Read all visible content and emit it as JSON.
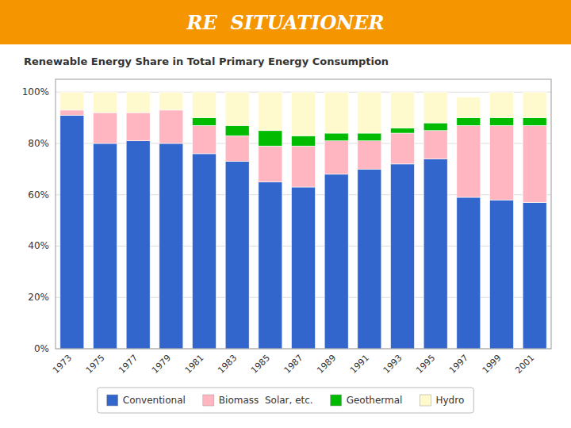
{
  "chart_data": {
    "type": "bar",
    "stacked": true,
    "title": "RE  SITUATIONER",
    "subtitle": "Renewable Energy Share in Total Primary Energy Consumption",
    "categories": [
      "1973",
      "1975",
      "1977",
      "1979",
      "1981",
      "1983",
      "1985",
      "1987",
      "1989",
      "1991",
      "1993",
      "1995",
      "1997",
      "1999",
      "2001"
    ],
    "series": [
      {
        "name": "Conventional",
        "color": "#3366CC",
        "values": [
          91,
          80,
          81,
          80,
          76,
          73,
          65,
          63,
          68,
          70,
          72,
          74,
          59,
          58,
          57
        ]
      },
      {
        "name": "Biomass  Solar, etc.",
        "color": "#FFB6C1",
        "values": [
          2,
          12,
          11,
          13,
          11,
          10,
          14,
          16,
          13,
          11,
          12,
          11,
          28,
          29,
          30
        ]
      },
      {
        "name": "Geothermal",
        "color": "#00BB00",
        "values": [
          0,
          0,
          0,
          0,
          3,
          4,
          6,
          4,
          3,
          3,
          2,
          3,
          3,
          3,
          3
        ]
      },
      {
        "name": "Hydro",
        "color": "#FFFACD",
        "values": [
          7,
          8,
          8,
          7,
          10,
          13,
          15,
          17,
          16,
          16,
          14,
          12,
          8,
          10,
          10
        ]
      }
    ],
    "ylim": [
      0,
      105
    ],
    "yticks": [
      {
        "value": 0,
        "label": "0%"
      },
      {
        "value": 20,
        "label": "20%"
      },
      {
        "value": 40,
        "label": "40%"
      },
      {
        "value": 60,
        "label": "60%"
      },
      {
        "value": 80,
        "label": "80%"
      },
      {
        "value": 100,
        "label": "100%"
      }
    ],
    "grid": true,
    "legend": "bottom"
  }
}
